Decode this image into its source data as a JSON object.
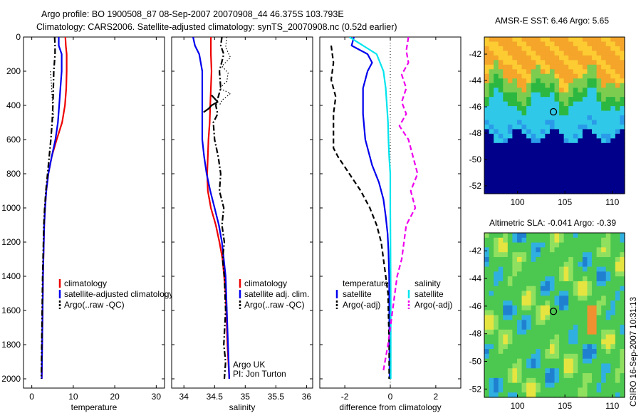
{
  "header": {
    "line1": "Argo profile: BO 1900508_87 08-Sep-2007 20070908_44 46.375S 103.793E",
    "line2": "Climatology: CARS2006. Satellite-adjusted climatology: synTS_20070908.nc (0.52d earlier)"
  },
  "credit": "CSIRO 16-Sep-2007 10:31:13",
  "colors": {
    "red": "#ee0000",
    "blue": "#0000ee",
    "black": "#000000",
    "cyan": "#00e5ee",
    "magenta": "#ee00ee"
  },
  "chart_data": [
    {
      "type": "line",
      "panel": "temperature",
      "xlabel": "temperature",
      "ylabel": "",
      "xlim": [
        -2,
        32
      ],
      "ylim": [
        2060,
        0
      ],
      "xticks": [
        0,
        10,
        20,
        30
      ],
      "yticks": [
        0,
        200,
        400,
        600,
        800,
        1000,
        1200,
        1400,
        1600,
        1800,
        2000
      ],
      "series": [
        {
          "name": "climatology",
          "color": "red",
          "dash": "solid",
          "x": [
            8.1,
            8.2,
            8.4,
            8.4,
            8.3,
            8.0,
            7.3,
            6.0,
            4.8,
            4.0,
            3.5,
            3.2,
            3.0,
            2.9,
            2.7,
            2.6,
            2.5,
            2.45,
            2.4
          ],
          "y": [
            0,
            50,
            100,
            200,
            300,
            400,
            500,
            600,
            700,
            800,
            900,
            1000,
            1100,
            1200,
            1400,
            1600,
            1800,
            1900,
            2000
          ]
        },
        {
          "name": "satellite-adjusted climatology",
          "color": "blue",
          "dash": "solid",
          "x": [
            6.5,
            6.5,
            7.2,
            7.2,
            6.9,
            6.6,
            6.3,
            5.7,
            4.8,
            4.0,
            3.5,
            3.2,
            3.0,
            2.9,
            2.7,
            2.6,
            2.5,
            2.45,
            2.4
          ],
          "y": [
            0,
            50,
            100,
            200,
            300,
            400,
            500,
            600,
            700,
            800,
            900,
            1000,
            1100,
            1200,
            1400,
            1600,
            1800,
            1900,
            2000
          ]
        },
        {
          "name": "Argo(..raw -QC)",
          "color": "black",
          "dash": "dashdot",
          "x": [
            5.5,
            5.6,
            5.6,
            5.3,
            5.2,
            5.1,
            4.9,
            4.6,
            4.2,
            3.8,
            3.4,
            3.1,
            2.9,
            2.8,
            2.6,
            2.5,
            2.4,
            2.35,
            2.3
          ],
          "y": [
            0,
            50,
            100,
            200,
            300,
            400,
            500,
            600,
            700,
            800,
            900,
            1000,
            1100,
            1200,
            1400,
            1600,
            1800,
            1900,
            2000
          ]
        },
        {
          "name": "",
          "color": "black",
          "dash": "dotted",
          "x": [
            4.5,
            4.8,
            5.0,
            5.3
          ],
          "y": [
            200,
            300,
            400,
            480
          ]
        }
      ],
      "legend": {
        "placement": "bottom-right",
        "entries": [
          {
            "label": "climatology",
            "color": "red",
            "dash": "solid"
          },
          {
            "label": "satellite-adjusted climatology",
            "color": "blue",
            "dash": "solid"
          },
          {
            "label": "Argo(..raw -QC)",
            "color": "black",
            "dash": "dashed"
          }
        ]
      }
    },
    {
      "type": "line",
      "panel": "salinity",
      "xlabel": "salinity",
      "ylabel": "",
      "xlim": [
        33.8,
        36.1
      ],
      "ylim": [
        2060,
        0
      ],
      "xticks": [
        34,
        34.5,
        35,
        35.5,
        36
      ],
      "yticks": [
        0,
        200,
        400,
        600,
        800,
        1000,
        1200,
        1400,
        1600,
        1800,
        2000
      ],
      "series": [
        {
          "name": "climatology",
          "color": "red",
          "dash": "solid",
          "x": [
            34.44,
            34.44,
            34.45,
            34.44,
            34.43,
            34.42,
            34.4,
            34.39,
            34.38,
            34.39,
            34.44,
            34.52,
            34.58,
            34.63,
            34.68,
            34.71,
            34.74
          ],
          "y": [
            0,
            100,
            200,
            300,
            400,
            500,
            600,
            700,
            800,
            900,
            1000,
            1100,
            1200,
            1300,
            1500,
            1800,
            2000
          ]
        },
        {
          "name": "satellite adj. clim.",
          "color": "blue",
          "dash": "solid",
          "x": [
            34.15,
            34.18,
            34.25,
            34.3,
            34.3,
            34.3,
            34.3,
            34.3,
            34.33,
            34.37,
            34.43,
            34.5,
            34.57,
            34.62,
            34.68,
            34.71,
            34.74
          ],
          "y": [
            0,
            50,
            100,
            200,
            300,
            400,
            500,
            600,
            700,
            800,
            900,
            1000,
            1100,
            1200,
            1400,
            1700,
            2000
          ]
        },
        {
          "name": "Argo(..raw -QC)",
          "color": "black",
          "dash": "dashdot",
          "x": [
            34.62,
            34.6,
            34.65,
            34.58,
            34.6,
            34.52,
            34.55,
            34.48,
            34.5,
            34.56,
            34.6,
            34.58,
            34.65,
            34.62,
            34.66,
            34.63,
            34.66,
            34.68,
            34.65,
            34.68,
            34.66
          ],
          "y": [
            0,
            50,
            100,
            200,
            300,
            400,
            450,
            500,
            600,
            700,
            800,
            900,
            1000,
            1100,
            1200,
            1300,
            1400,
            1600,
            1800,
            1900,
            2000
          ]
        },
        {
          "name": "",
          "color": "black",
          "dash": "dotted",
          "x": [
            34.7,
            34.68,
            34.76,
            34.62,
            34.72,
            34.7,
            34.58,
            34.76,
            34.62,
            34.58
          ],
          "y": [
            0,
            60,
            120,
            170,
            210,
            260,
            300,
            330,
            370,
            400
          ]
        },
        {
          "name": "",
          "color": "black",
          "dash": "solid",
          "x": [
            34.32,
            34.4,
            34.45,
            34.55,
            34.5,
            34.45
          ],
          "y": [
            440,
            420,
            400,
            380,
            360,
            340
          ]
        }
      ],
      "legend": {
        "placement": "bottom-right",
        "entries": [
          {
            "label": "climatology",
            "color": "red",
            "dash": "solid"
          },
          {
            "label": "satellite adj. clim.",
            "color": "blue",
            "dash": "solid"
          },
          {
            "label": "Argo(..raw -QC)",
            "color": "black",
            "dash": "dashed"
          }
        ]
      },
      "annotation": [
        "Argo UK",
        "PI: Jon Turton"
      ]
    },
    {
      "type": "line",
      "panel": "difference",
      "xlabel": "difference from climatology",
      "ylabel": "",
      "xlim": [
        -3.1,
        3.1
      ],
      "ylim": [
        2060,
        0
      ],
      "xticks": [
        -2,
        0,
        2
      ],
      "yticks": [
        0,
        200,
        400,
        600,
        800,
        1000,
        1200,
        1400,
        1600,
        1800,
        2000
      ],
      "series": [
        {
          "name": "temperature satellite",
          "color": "blue",
          "dash": "solid",
          "x": [
            -1.6,
            -1.7,
            -1.0,
            -0.8,
            -1.0,
            -1.2,
            -1.2,
            -1.1,
            -0.8,
            -0.5,
            -0.3,
            -0.2,
            -0.12,
            -0.08,
            -0.05,
            -0.04,
            -0.03
          ],
          "y": [
            0,
            50,
            100,
            150,
            200,
            300,
            450,
            600,
            750,
            850,
            950,
            1050,
            1150,
            1250,
            1400,
            1700,
            2000
          ]
        },
        {
          "name": "temperature Argo(-adj)",
          "color": "black",
          "dash": "dashed",
          "x": [
            -2.6,
            -2.5,
            -2.6,
            -2.4,
            -2.5,
            -2.5,
            -2.5,
            -2.3,
            -1.8,
            -1.3,
            -0.9,
            -0.6,
            -0.4,
            -0.3,
            -0.1,
            -0.05,
            -0.05
          ],
          "y": [
            50,
            150,
            250,
            350,
            450,
            550,
            650,
            700,
            800,
            900,
            1000,
            1100,
            1200,
            1300,
            1500,
            1800,
            2000
          ]
        },
        {
          "name": "salinity satellite",
          "color": "cyan",
          "dash": "solid",
          "x": [
            -1.8,
            -1.2,
            -0.6,
            -0.3,
            -0.2,
            -0.15,
            -0.1,
            -0.08,
            -0.05,
            0.0,
            0.0,
            0.02,
            0.02
          ],
          "y": [
            0,
            50,
            100,
            200,
            300,
            400,
            500,
            600,
            700,
            800,
            1000,
            1500,
            2000
          ]
        },
        {
          "name": "salinity Argo(-adj)",
          "color": "magenta",
          "dash": "dashed",
          "x": [
            0.8,
            0.7,
            0.8,
            0.5,
            0.7,
            0.5,
            0.7,
            0.4,
            0.8,
            1.0,
            1.2,
            0.9,
            1.1,
            0.7,
            0.6,
            0.5,
            0.3,
            0.2,
            0.1,
            0.0,
            -0.1,
            -0.3
          ],
          "y": [
            0,
            80,
            150,
            220,
            300,
            380,
            450,
            520,
            600,
            700,
            800,
            900,
            1000,
            1100,
            1200,
            1300,
            1400,
            1500,
            1600,
            1700,
            1800,
            1950
          ]
        }
      ],
      "legend": {
        "placement": "bottom",
        "groups": [
          {
            "title": "temperature",
            "entries": [
              {
                "label": "satellite",
                "color": "blue",
                "dash": "solid"
              },
              {
                "label": "Argo(-adj)",
                "color": "black",
                "dash": "dashed"
              }
            ]
          },
          {
            "title": "salinity",
            "entries": [
              {
                "label": "satellite",
                "color": "cyan",
                "dash": "solid"
              },
              {
                "label": "Argo(-adj)",
                "color": "magenta",
                "dash": "dashed"
              }
            ]
          }
        ]
      }
    },
    {
      "type": "heatmap",
      "panel": "sst-map",
      "title": "AMSR-E SST: 6.46 Argo: 5.65",
      "xlim": [
        96.5,
        111.3
      ],
      "ylim": [
        -52.6,
        -40.7
      ],
      "xticks": [
        100,
        105,
        110
      ],
      "yticks": [
        -42,
        -44,
        -46,
        -48,
        -50,
        -52
      ],
      "marker": {
        "lon": 103.79,
        "lat": -46.38
      },
      "colors": {
        "warm": "#f4a52a",
        "warm2": "#fccc32",
        "mid": "#2cb840",
        "lime": "#7ccc50",
        "cool": "#2a9be8",
        "cyan": "#30c8e8",
        "cold": "#00008b"
      }
    },
    {
      "type": "heatmap",
      "panel": "sla-map",
      "title": "Altimetric SLA: -0.041 Argo: -0.39",
      "xlim": [
        96.5,
        111.3
      ],
      "ylim": [
        -52.6,
        -40.7
      ],
      "xticks": [
        100,
        105,
        110
      ],
      "yticks": [
        -42,
        -44,
        -46,
        -48,
        -50,
        -52
      ],
      "marker": {
        "lon": 103.79,
        "lat": -46.38
      },
      "colors": {
        "base": "#4cc850",
        "light": "#90e060",
        "yellow": "#e6e440",
        "blue": "#30b0e0",
        "deep": "#2080d0",
        "orange": "#f09030"
      }
    }
  ]
}
